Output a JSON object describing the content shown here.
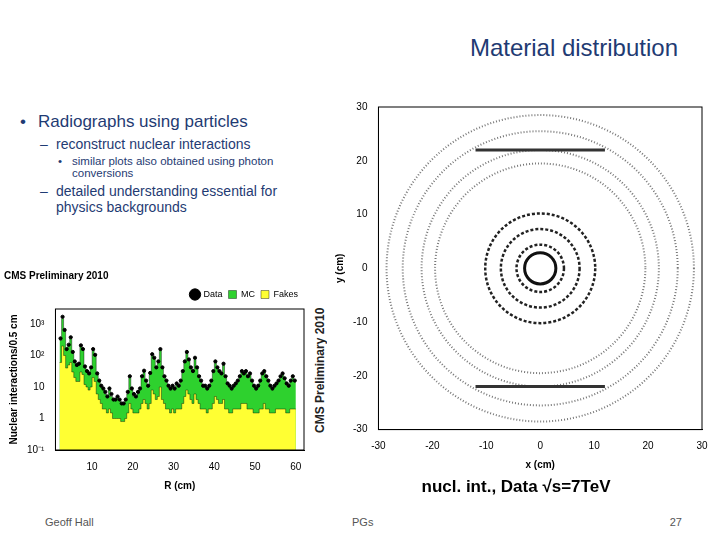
{
  "slide": {
    "title": "Material distribution",
    "bullets": [
      {
        "text": "Radiographs using particles",
        "items": [
          {
            "text": "reconstruct nuclear interactions",
            "items": [
              {
                "text": "similar plots also obtained using photon conversions"
              }
            ]
          },
          {
            "text": "detailed understanding essential for physics backgrounds"
          }
        ]
      }
    ],
    "footer": {
      "left": "Geoff Hall",
      "center": "PGs",
      "page": 27
    }
  },
  "chart_data": [
    {
      "type": "histogram",
      "title": "CMS Preliminary 2010",
      "x_label": "R (cm)",
      "y_label": "Nuclear interactions/0.5 cm",
      "log": "y",
      "grid": false,
      "legend": "top-right",
      "xlim": [
        1,
        62
      ],
      "xticks": [
        10,
        20,
        30,
        40,
        50,
        60
      ],
      "ylim": [
        0.1,
        3000
      ],
      "yticks": [
        {
          "value": 0.1,
          "label": "10⁻¹"
        },
        1,
        10,
        {
          "value": 100,
          "label": "10²"
        },
        {
          "value": 1000,
          "label": "10³"
        }
      ],
      "bins": [
        2,
        2.5,
        3,
        3.5,
        4,
        4.5,
        5,
        5.5,
        6,
        6.5,
        7,
        7.5,
        8,
        8.5,
        9,
        9.5,
        10,
        10.5,
        11,
        11.5,
        12,
        12.5,
        13,
        13.5,
        14,
        14.5,
        15,
        15.5,
        16,
        16.5,
        17,
        17.5,
        18,
        18.5,
        19,
        19.5,
        20,
        20.5,
        21,
        21.5,
        22,
        22.5,
        23,
        23.5,
        24,
        24.5,
        25,
        25.5,
        26,
        26.5,
        27,
        27.5,
        28,
        28.5,
        29,
        29.5,
        30,
        30.5,
        31,
        31.5,
        32,
        32.5,
        33,
        33.5,
        34,
        34.5,
        35,
        35.5,
        36,
        36.5,
        37,
        37.5,
        38,
        38.5,
        39,
        39.5,
        40,
        40.5,
        41,
        41.5,
        42,
        42.5,
        43,
        43.5,
        44,
        44.5,
        45,
        45.5,
        46,
        46.5,
        47,
        47.5,
        48,
        48.5,
        49,
        49.5,
        50,
        50.5,
        51,
        51.5,
        52,
        52.5,
        53,
        53.5,
        54,
        54.5,
        55,
        55.5,
        56,
        56.5,
        57,
        57.5,
        58,
        58.5,
        59,
        59.5,
        60
      ],
      "series": [
        {
          "name": "Data",
          "color": "#000000",
          "marker": "circle",
          "values": [
            350,
            1700,
            650,
            160,
            220,
            380,
            130,
            65,
            50,
            55,
            210,
            160,
            45,
            32,
            27,
            42,
            160,
            105,
            27,
            16,
            11,
            9,
            7,
            5,
            9,
            6,
            4,
            4,
            5,
            4,
            3,
            3,
            4,
            7,
            22,
            9,
            6,
            5,
            7,
            9,
            22,
            33,
            16,
            11,
            28,
            110,
            85,
            42,
            65,
            160,
            42,
            22,
            16,
            11,
            9,
            11,
            9,
            13,
            11,
            16,
            32,
            65,
            130,
            75,
            42,
            32,
            85,
            42,
            22,
            16,
            11,
            11,
            9,
            11,
            16,
            32,
            65,
            42,
            32,
            27,
            55,
            22,
            13,
            11,
            9,
            11,
            13,
            16,
            22,
            32,
            27,
            32,
            22,
            27,
            16,
            11,
            9,
            11,
            16,
            27,
            32,
            22,
            16,
            11,
            9,
            11,
            13,
            16,
            22,
            27,
            19,
            13,
            11,
            16,
            22,
            16
          ]
        },
        {
          "name": "MC",
          "color": "#2ed12e",
          "values": [
            300,
            1500,
            600,
            150,
            200,
            350,
            120,
            60,
            45,
            50,
            200,
            150,
            40,
            30,
            25,
            40,
            150,
            100,
            25,
            15,
            10,
            8,
            6,
            5,
            8,
            5,
            4,
            4,
            5,
            4,
            3,
            3,
            4,
            6,
            20,
            8,
            5,
            5,
            6,
            8,
            20,
            30,
            15,
            10,
            25,
            100,
            80,
            40,
            60,
            150,
            40,
            20,
            15,
            10,
            8,
            10,
            8,
            12,
            10,
            15,
            30,
            60,
            120,
            70,
            40,
            30,
            80,
            40,
            20,
            15,
            10,
            10,
            8,
            10,
            15,
            30,
            60,
            40,
            30,
            25,
            50,
            20,
            12,
            10,
            8,
            10,
            12,
            15,
            20,
            30,
            25,
            30,
            20,
            25,
            15,
            10,
            8,
            10,
            15,
            25,
            30,
            20,
            15,
            10,
            8,
            10,
            12,
            15,
            20,
            25,
            18,
            12,
            10,
            15,
            20,
            15
          ]
        },
        {
          "name": "Fakes",
          "color": "#ffff33",
          "values": [
            60,
            200,
            100,
            40,
            50,
            60,
            30,
            20,
            15,
            15,
            30,
            25,
            12,
            10,
            8,
            10,
            20,
            15,
            6,
            4,
            3,
            2,
            2,
            1.5,
            2,
            1.5,
            1,
            1,
            1,
            1,
            0.8,
            0.8,
            1,
            1.5,
            3,
            2,
            1.5,
            1.5,
            1.5,
            2,
            3,
            4,
            3,
            2,
            3,
            8,
            6,
            4,
            5,
            10,
            4,
            3,
            2,
            2,
            1.5,
            2,
            1.5,
            2,
            2,
            2,
            3,
            5,
            8,
            6,
            4,
            3,
            6,
            4,
            3,
            2,
            2,
            2,
            1.5,
            2,
            2,
            3,
            5,
            4,
            3,
            3,
            4,
            2,
            2,
            1.5,
            1.5,
            2,
            2,
            2,
            2,
            3,
            3,
            3,
            2,
            2,
            2,
            1.5,
            1.5,
            1.5,
            2,
            2,
            3,
            2,
            2,
            1.5,
            1.5,
            1.5,
            2,
            2,
            2,
            2,
            2,
            1.5,
            1.5,
            2,
            2,
            2
          ]
        }
      ]
    },
    {
      "type": "radiograph",
      "title": "nucl. int., Data √s=7TeV",
      "annotation": "CMS Preliminary 2010",
      "x_label": "x (cm)",
      "y_label": "y (cm)",
      "grid": false,
      "xlim": [
        -30,
        30
      ],
      "xticks": [
        -30,
        -20,
        -10,
        0,
        10,
        20,
        30
      ],
      "ylim": [
        -30,
        30
      ],
      "yticks": [
        -30,
        -20,
        -10,
        0,
        10,
        20,
        30
      ],
      "rings": [
        2.9,
        4.4,
        7.3,
        10.2,
        19.5,
        22,
        25.5,
        28.5
      ],
      "segments": [
        {
          "x": [
            -12,
            12
          ],
          "y": [
            22,
            22
          ]
        },
        {
          "x": [
            -12,
            12
          ],
          "y": [
            -22,
            -22
          ]
        }
      ]
    }
  ]
}
